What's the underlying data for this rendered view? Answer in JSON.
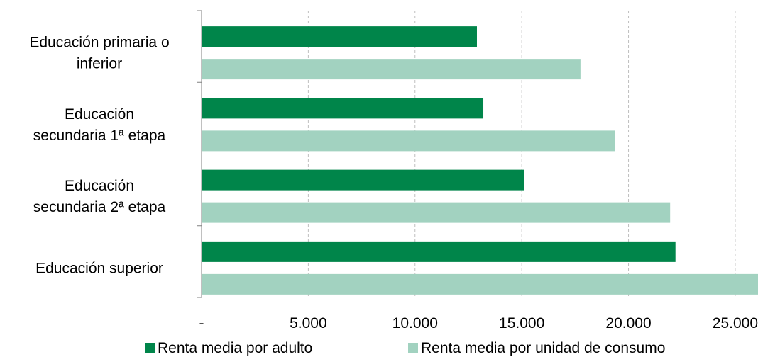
{
  "chart_data": {
    "type": "bar",
    "orientation": "horizontal",
    "categories": [
      [
        "Educación primaria o",
        "inferior"
      ],
      [
        "Educación",
        "secundaria 1ª etapa"
      ],
      [
        "Educación",
        "secundaria 2ª etapa"
      ],
      [
        "Educación superior"
      ]
    ],
    "series": [
      {
        "name": "Renta media por adulto",
        "color": "#00854a",
        "values": [
          12900,
          13200,
          15100,
          22200
        ]
      },
      {
        "name": "Renta media por unidad de consumo",
        "color": "#a2d2c0",
        "values": [
          17750,
          19350,
          21950,
          26200
        ]
      }
    ],
    "xlim": [
      0,
      26000
    ],
    "xticks": [
      0,
      5000,
      10000,
      15000,
      20000,
      25000
    ],
    "xtick_labels": [
      "-",
      "5.000",
      "10.000",
      "15.000",
      "20.000",
      "25.000"
    ],
    "grid": "vertical-dashed",
    "legend": "bottom",
    "title": "",
    "xlabel": "",
    "ylabel": ""
  }
}
